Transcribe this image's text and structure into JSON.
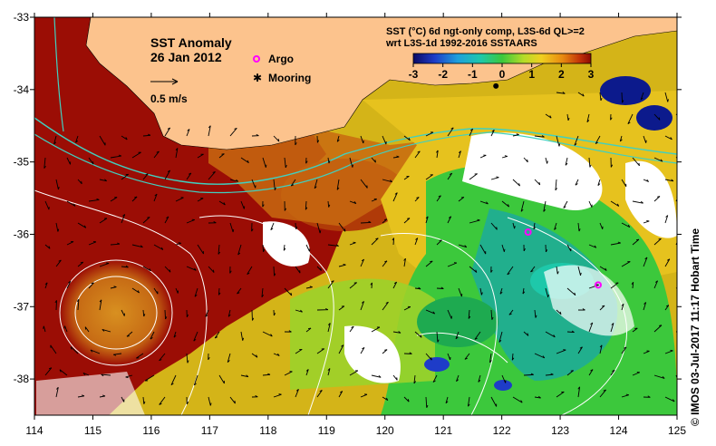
{
  "title": {
    "main": "SST Anomaly",
    "date": "26 Jan 2012",
    "velocity_scale": "0.5 m/s"
  },
  "legend": {
    "argo": "Argo",
    "mooring": "Mooring",
    "argo_color": "#ff00ff",
    "mooring_color": "#000000"
  },
  "colorbar": {
    "line1": "SST (°C) 6d ngt-only comp, L3S-6d QL>=2",
    "line2": "wrt L3S-1d 1992-2016 SSTAARS",
    "ticks": [
      "-3",
      "-2",
      "-1",
      "0",
      "1",
      "2",
      "3"
    ],
    "range": [
      -3,
      3
    ]
  },
  "axes": {
    "x_ticks": [
      "114",
      "115",
      "116",
      "117",
      "118",
      "119",
      "120",
      "121",
      "122",
      "123",
      "124",
      "125"
    ],
    "y_ticks": [
      "-33",
      "-34",
      "-35",
      "-36",
      "-37",
      "-38"
    ],
    "lon_range": [
      114,
      125
    ],
    "lat_range": [
      -38.5,
      -33
    ]
  },
  "credit": "© IMOS 03-Jul-2017 11:17 Hobart Time",
  "colors": {
    "land": "#fcc38d",
    "hot": "#9b0d05",
    "warm": "#d6820f",
    "yellow": "#e8c820",
    "green": "#32c832",
    "cool": "#1caa9b",
    "cold": "#0c1a8c",
    "contour": "#ffffff",
    "track": "#40d0c0"
  },
  "markers": {
    "argo_floats": [
      {
        "lon": 122.45,
        "lat": -35.97
      },
      {
        "lon": 123.65,
        "lat": -36.7
      }
    ],
    "moorings": [
      {
        "lon": 121.9,
        "lat": -33.95
      }
    ]
  }
}
